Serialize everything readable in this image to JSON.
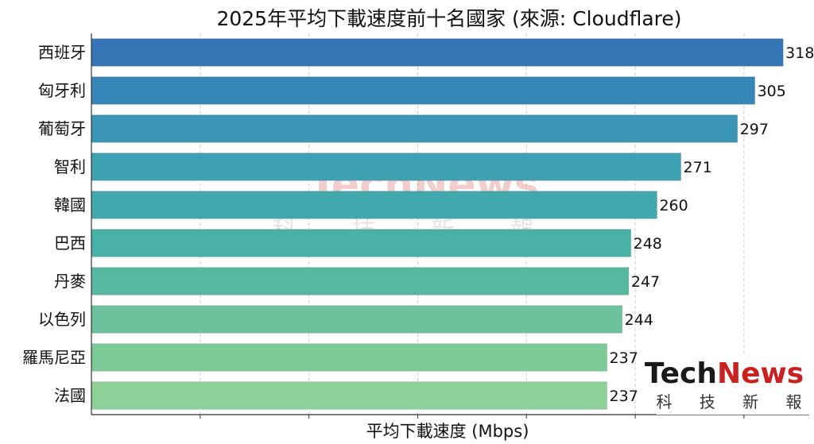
{
  "chart_data": {
    "type": "bar",
    "orientation": "horizontal",
    "title": "2025年平均下載速度前十名國家 (來源: Cloudflare)",
    "xlabel": "平均下載速度 (Mbps)",
    "ylabel": "",
    "categories": [
      "西班牙",
      "匈牙利",
      "葡萄牙",
      "智利",
      "韓國",
      "巴西",
      "丹麥",
      "以色列",
      "羅馬尼亞",
      "法國"
    ],
    "values": [
      318,
      305,
      297,
      271,
      260,
      248,
      247,
      244,
      237,
      237
    ],
    "xlim": [
      0,
      330
    ],
    "grid": true,
    "data_labels": true,
    "colors": [
      "#3574b5",
      "#3585b7",
      "#3a95b6",
      "#3ea2b3",
      "#41a8ad",
      "#49b1a6",
      "#57b8a0",
      "#6bc29d",
      "#7dca99",
      "#8dd198"
    ]
  },
  "watermark": {
    "brand_a": "Tech",
    "brand_b": "News",
    "tagline": "科 技 新 報",
    "color_a": "#1a1a1a",
    "color_b": "#c8211f"
  }
}
